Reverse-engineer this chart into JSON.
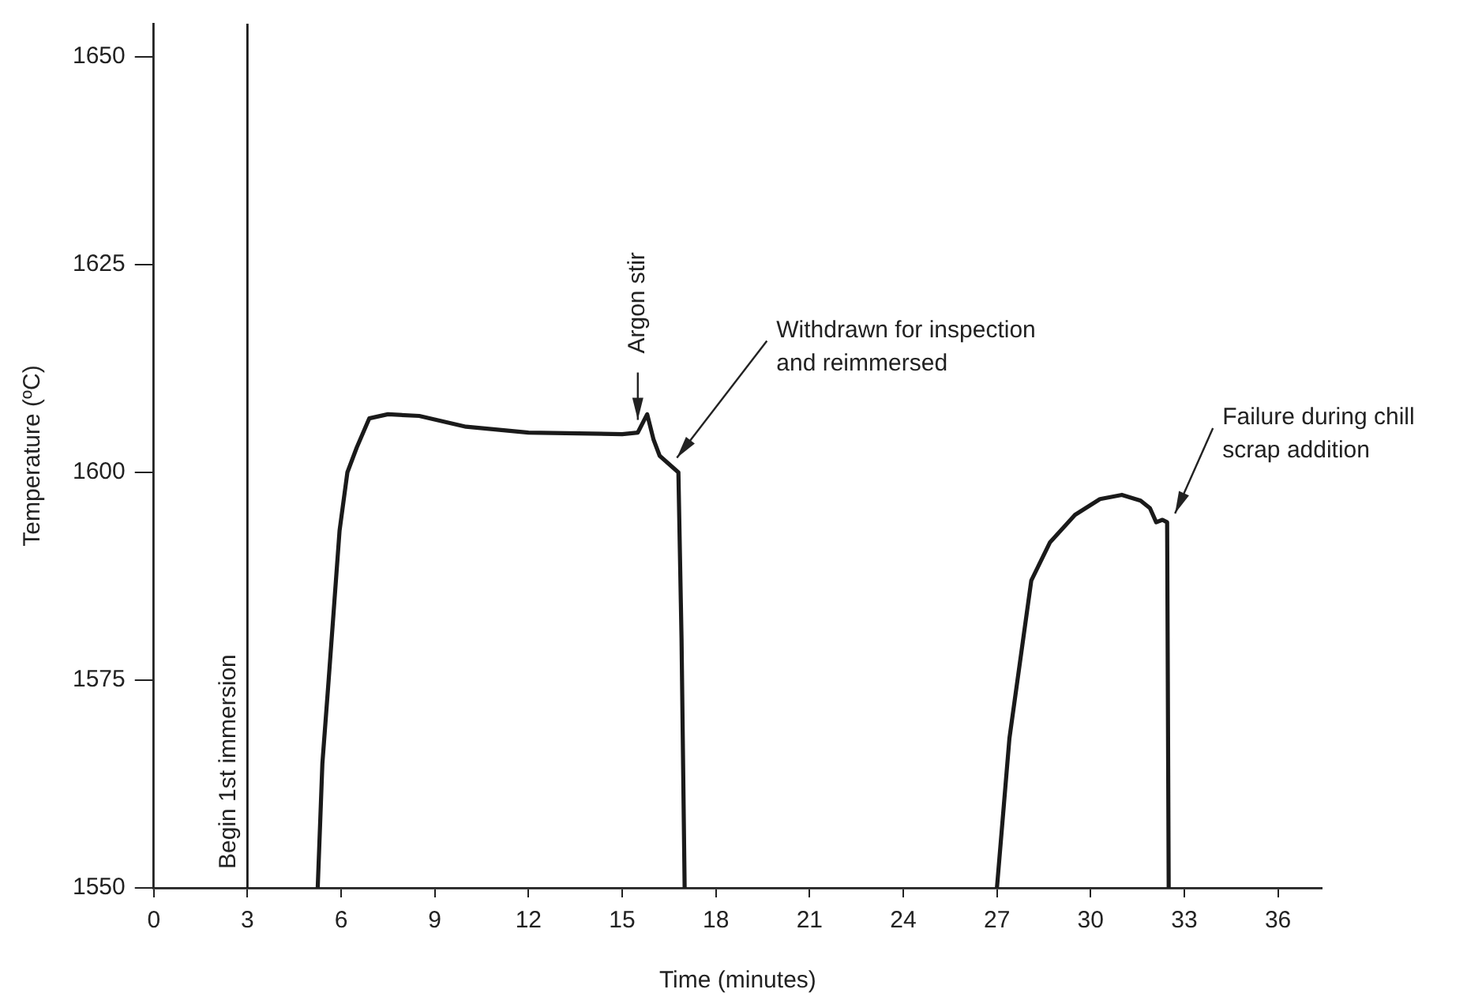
{
  "chart_data": {
    "type": "line",
    "xlabel": "Time (minutes)",
    "ylabel": "Temperature (ºC)",
    "xlim": [
      0,
      37.4
    ],
    "ylim": [
      1550,
      1654
    ],
    "xticks": [
      0,
      3,
      6,
      9,
      12,
      15,
      18,
      21,
      24,
      27,
      30,
      33,
      36
    ],
    "yticks": [
      1550,
      1575,
      1600,
      1625,
      1650
    ],
    "grid": false,
    "legend": false,
    "marker": "none",
    "line_style": "solid",
    "series": [
      {
        "color": "#1a1a1a",
        "x": [
          5.25,
          5.4,
          5.6,
          5.95,
          6.2,
          6.5,
          6.9,
          7.5,
          8.5,
          10,
          12,
          15,
          15.5,
          15.8,
          16.0,
          16.2,
          16.5,
          16.8,
          16.9,
          17.0,
          22,
          27.0,
          27.4,
          28.1,
          28.7,
          29.5,
          30.3,
          31.0,
          31.6,
          31.9,
          32.1,
          32.3,
          32.45,
          32.5
        ],
        "values": [
          1550,
          1565,
          1575,
          1593,
          1600,
          1603,
          1606.5,
          1607,
          1606.8,
          1605.5,
          1604.8,
          1604.6,
          1604.8,
          1607,
          1604,
          1602,
          1601,
          1600,
          1580,
          1550,
          null,
          1550,
          1568,
          1587,
          1591.6,
          1594.9,
          1596.8,
          1597.3,
          1596.6,
          1595.7,
          1594,
          1594.3,
          1594,
          1550
        ]
      }
    ],
    "ref_lines": [
      {
        "axis": "x",
        "value": 3,
        "label": "Begin 1st immersion",
        "color": "#1a1a1a",
        "line_style": "solid"
      }
    ],
    "annotations": [
      {
        "text": "Argon stir",
        "x": 15.5,
        "y": 1604.8
      },
      {
        "text": "Withdrawn for inspection\nand reimmersed",
        "x": 16.6,
        "y": 1601
      },
      {
        "text": "Failure during chill\nscrap addition",
        "x": 32.5,
        "y": 1594.3
      }
    ]
  }
}
